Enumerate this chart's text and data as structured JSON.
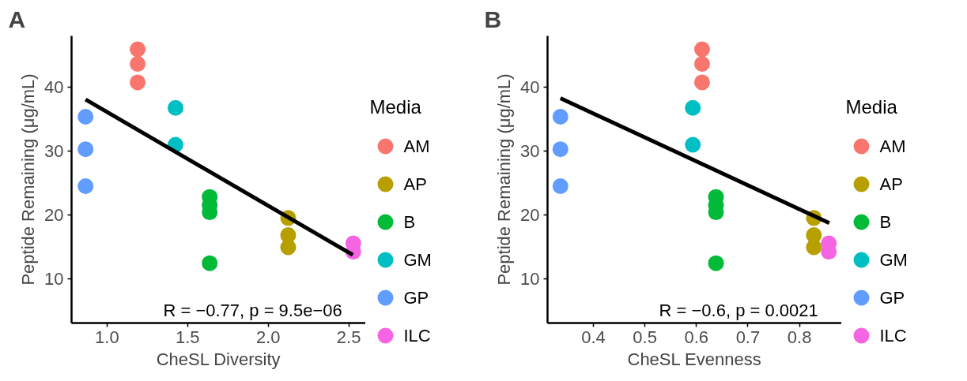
{
  "chart_data": [
    {
      "type": "scatter",
      "title": "A",
      "xlabel": "CheSL Diversity",
      "ylabel": "Peptide Remaining (μg/mL)",
      "legend_title": "Media",
      "legend": "right",
      "grid": false,
      "marker": "circle",
      "xlim": [
        0.78,
        2.605
      ],
      "xticks": [
        {
          "value": 1.0,
          "label": "1.0"
        },
        {
          "value": 1.5,
          "label": "1.5"
        },
        {
          "value": 2.0,
          "label": "2.0"
        },
        {
          "value": 2.5,
          "label": "2.5"
        }
      ],
      "ylim": [
        3,
        48.1
      ],
      "yticks": [
        10,
        20,
        30,
        40
      ],
      "annotations": [
        "R = −0.77, p = 9.5e−06"
      ],
      "series": [
        {
          "name": "AM",
          "color": "#f8766d",
          "x": [
            1.19,
            1.19,
            1.19
          ],
          "values": [
            46.0,
            43.7,
            40.8
          ]
        },
        {
          "name": "AP",
          "color": "#b79f00",
          "x": [
            2.124,
            2.124,
            2.124
          ],
          "values": [
            19.5,
            16.8,
            14.9
          ]
        },
        {
          "name": "B",
          "color": "#00ba38",
          "x": [
            1.637,
            1.637,
            1.637,
            1.637
          ],
          "values": [
            22.8,
            21.5,
            20.4,
            12.4
          ]
        },
        {
          "name": "GM",
          "color": "#00bfc4",
          "x": [
            1.425,
            1.425
          ],
          "values": [
            36.8,
            31.0
          ]
        },
        {
          "name": "GP",
          "color": "#619cff",
          "x": [
            0.867,
            0.867,
            0.867
          ],
          "values": [
            35.4,
            30.3,
            24.5
          ]
        },
        {
          "name": "ILC",
          "color": "#f564e3",
          "x": [
            2.528,
            2.528
          ],
          "values": [
            15.5,
            14.2
          ]
        },
        {
          "type": "line",
          "marker": "none",
          "color": "#000000",
          "x": [
            0.867,
            2.525
          ],
          "values": [
            38.1,
            13.7
          ]
        }
      ]
    },
    {
      "type": "scatter",
      "title": "B",
      "xlabel": "CheSL Evenness",
      "ylabel": "Peptide Remaining (μg/mL)",
      "legend_title": "Media",
      "legend": "right",
      "grid": false,
      "marker": "circle",
      "xlim": [
        0.311,
        0.882
      ],
      "xticks": [
        0.4,
        0.5,
        0.6,
        0.7,
        0.8
      ],
      "ylim": [
        3,
        48.1
      ],
      "yticks": [
        10,
        20,
        30,
        40
      ],
      "annotations": [
        "R = −0.6, p = 0.0021"
      ],
      "series": [
        {
          "name": "AM",
          "color": "#f8766d",
          "x": [
            0.611,
            0.611,
            0.611
          ],
          "values": [
            46.0,
            43.7,
            40.8
          ]
        },
        {
          "name": "AP",
          "color": "#b79f00",
          "x": [
            0.828,
            0.828,
            0.828
          ],
          "values": [
            19.5,
            16.8,
            14.9
          ]
        },
        {
          "name": "B",
          "color": "#00ba38",
          "x": [
            0.638,
            0.638,
            0.638,
            0.638
          ],
          "values": [
            22.8,
            21.5,
            20.4,
            12.4
          ]
        },
        {
          "name": "GM",
          "color": "#00bfc4",
          "x": [
            0.593,
            0.593
          ],
          "values": [
            36.8,
            31.0
          ]
        },
        {
          "name": "GP",
          "color": "#619cff",
          "x": [
            0.336,
            0.336,
            0.336
          ],
          "values": [
            35.4,
            30.3,
            24.5
          ]
        },
        {
          "name": "ILC",
          "color": "#f564e3",
          "x": [
            0.857,
            0.857
          ],
          "values": [
            15.5,
            14.2
          ]
        },
        {
          "type": "line",
          "marker": "none",
          "color": "#000000",
          "x": [
            0.336,
            0.858
          ],
          "values": [
            38.3,
            18.7
          ]
        }
      ]
    }
  ]
}
